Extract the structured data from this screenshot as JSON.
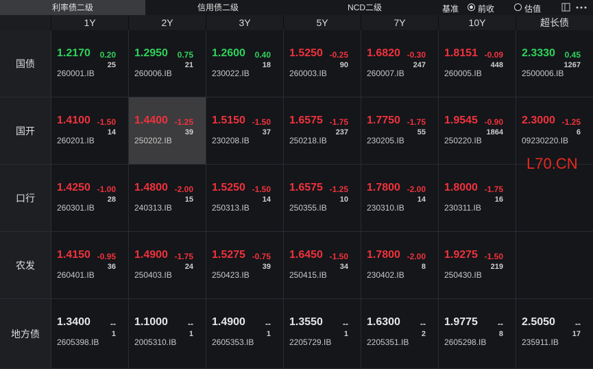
{
  "tabs": [
    "利率债二级",
    "信用债二级",
    "NCD二级"
  ],
  "controls": {
    "benchmark": "基准",
    "options": [
      "前收",
      "估值"
    ]
  },
  "watermark": "L70.CN",
  "table": {
    "columns": [
      "1Y",
      "2Y",
      "3Y",
      "5Y",
      "7Y",
      "10Y",
      "超长债"
    ],
    "rows": [
      {
        "label": "国债",
        "cells": [
          {
            "yield": "1.2170",
            "change": "0.20",
            "count": "25",
            "code": "260001.IB"
          },
          {
            "yield": "1.2950",
            "change": "0.75",
            "count": "21",
            "code": "260006.IB"
          },
          {
            "yield": "1.2600",
            "change": "0.40",
            "count": "18",
            "code": "230022.IB"
          },
          {
            "yield": "1.5250",
            "change": "-0.25",
            "count": "90",
            "code": "260003.IB"
          },
          {
            "yield": "1.6820",
            "change": "-0.30",
            "count": "247",
            "code": "260007.IB"
          },
          {
            "yield": "1.8151",
            "change": "-0.09",
            "count": "448",
            "code": "260005.IB"
          },
          {
            "yield": "2.3330",
            "change": "0.45",
            "count": "1267",
            "code": "2500006.IB"
          }
        ]
      },
      {
        "label": "国开",
        "cells": [
          {
            "yield": "1.4100",
            "change": "-1.50",
            "count": "14",
            "code": "260201.IB"
          },
          {
            "yield": "1.4400",
            "change": "-1.25",
            "count": "39",
            "code": "250202.IB"
          },
          {
            "yield": "1.5150",
            "change": "-1.50",
            "count": "37",
            "code": "230208.IB"
          },
          {
            "yield": "1.6575",
            "change": "-1.75",
            "count": "237",
            "code": "250218.IB"
          },
          {
            "yield": "1.7750",
            "change": "-1.75",
            "count": "55",
            "code": "230205.IB"
          },
          {
            "yield": "1.9545",
            "change": "-0.90",
            "count": "1864",
            "code": "250220.IB"
          },
          {
            "yield": "2.3000",
            "change": "-1.25",
            "count": "6",
            "code": "09230220.IB"
          }
        ]
      },
      {
        "label": "口行",
        "cells": [
          {
            "yield": "1.4250",
            "change": "-1.00",
            "count": "28",
            "code": "260301.IB"
          },
          {
            "yield": "1.4800",
            "change": "-2.00",
            "count": "15",
            "code": "240313.IB"
          },
          {
            "yield": "1.5250",
            "change": "-1.50",
            "count": "14",
            "code": "250313.IB"
          },
          {
            "yield": "1.6575",
            "change": "-1.25",
            "count": "10",
            "code": "250355.IB"
          },
          {
            "yield": "1.7800",
            "change": "-2.00",
            "count": "14",
            "code": "230310.IB"
          },
          {
            "yield": "1.8000",
            "change": "-1.75",
            "count": "16",
            "code": "230311.IB"
          },
          null
        ]
      },
      {
        "label": "农发",
        "cells": [
          {
            "yield": "1.4150",
            "change": "-0.95",
            "count": "36",
            "code": "260401.IB"
          },
          {
            "yield": "1.4900",
            "change": "-1.75",
            "count": "24",
            "code": "250403.IB"
          },
          {
            "yield": "1.5275",
            "change": "-0.75",
            "count": "39",
            "code": "250423.IB"
          },
          {
            "yield": "1.6450",
            "change": "-1.50",
            "count": "34",
            "code": "250415.IB"
          },
          {
            "yield": "1.7800",
            "change": "-2.00",
            "count": "8",
            "code": "230402.IB"
          },
          {
            "yield": "1.9275",
            "change": "-1.50",
            "count": "219",
            "code": "250430.IB"
          },
          null
        ]
      },
      {
        "label": "地方债",
        "cells": [
          {
            "yield": "1.3400",
            "change": "--",
            "count": "1",
            "code": "2605398.IB"
          },
          {
            "yield": "1.1000",
            "change": "--",
            "count": "1",
            "code": "2005310.IB"
          },
          {
            "yield": "1.4900",
            "change": "--",
            "count": "1",
            "code": "2605353.IB"
          },
          {
            "yield": "1.3550",
            "change": "--",
            "count": "1",
            "code": "2205729.IB"
          },
          {
            "yield": "1.6300",
            "change": "--",
            "count": "2",
            "code": "2205351.IB"
          },
          {
            "yield": "1.9775",
            "change": "--",
            "count": "8",
            "code": "2605298.IB"
          },
          {
            "yield": "2.5050",
            "change": "--",
            "count": "17",
            "code": "235911.IB"
          }
        ]
      }
    ]
  }
}
